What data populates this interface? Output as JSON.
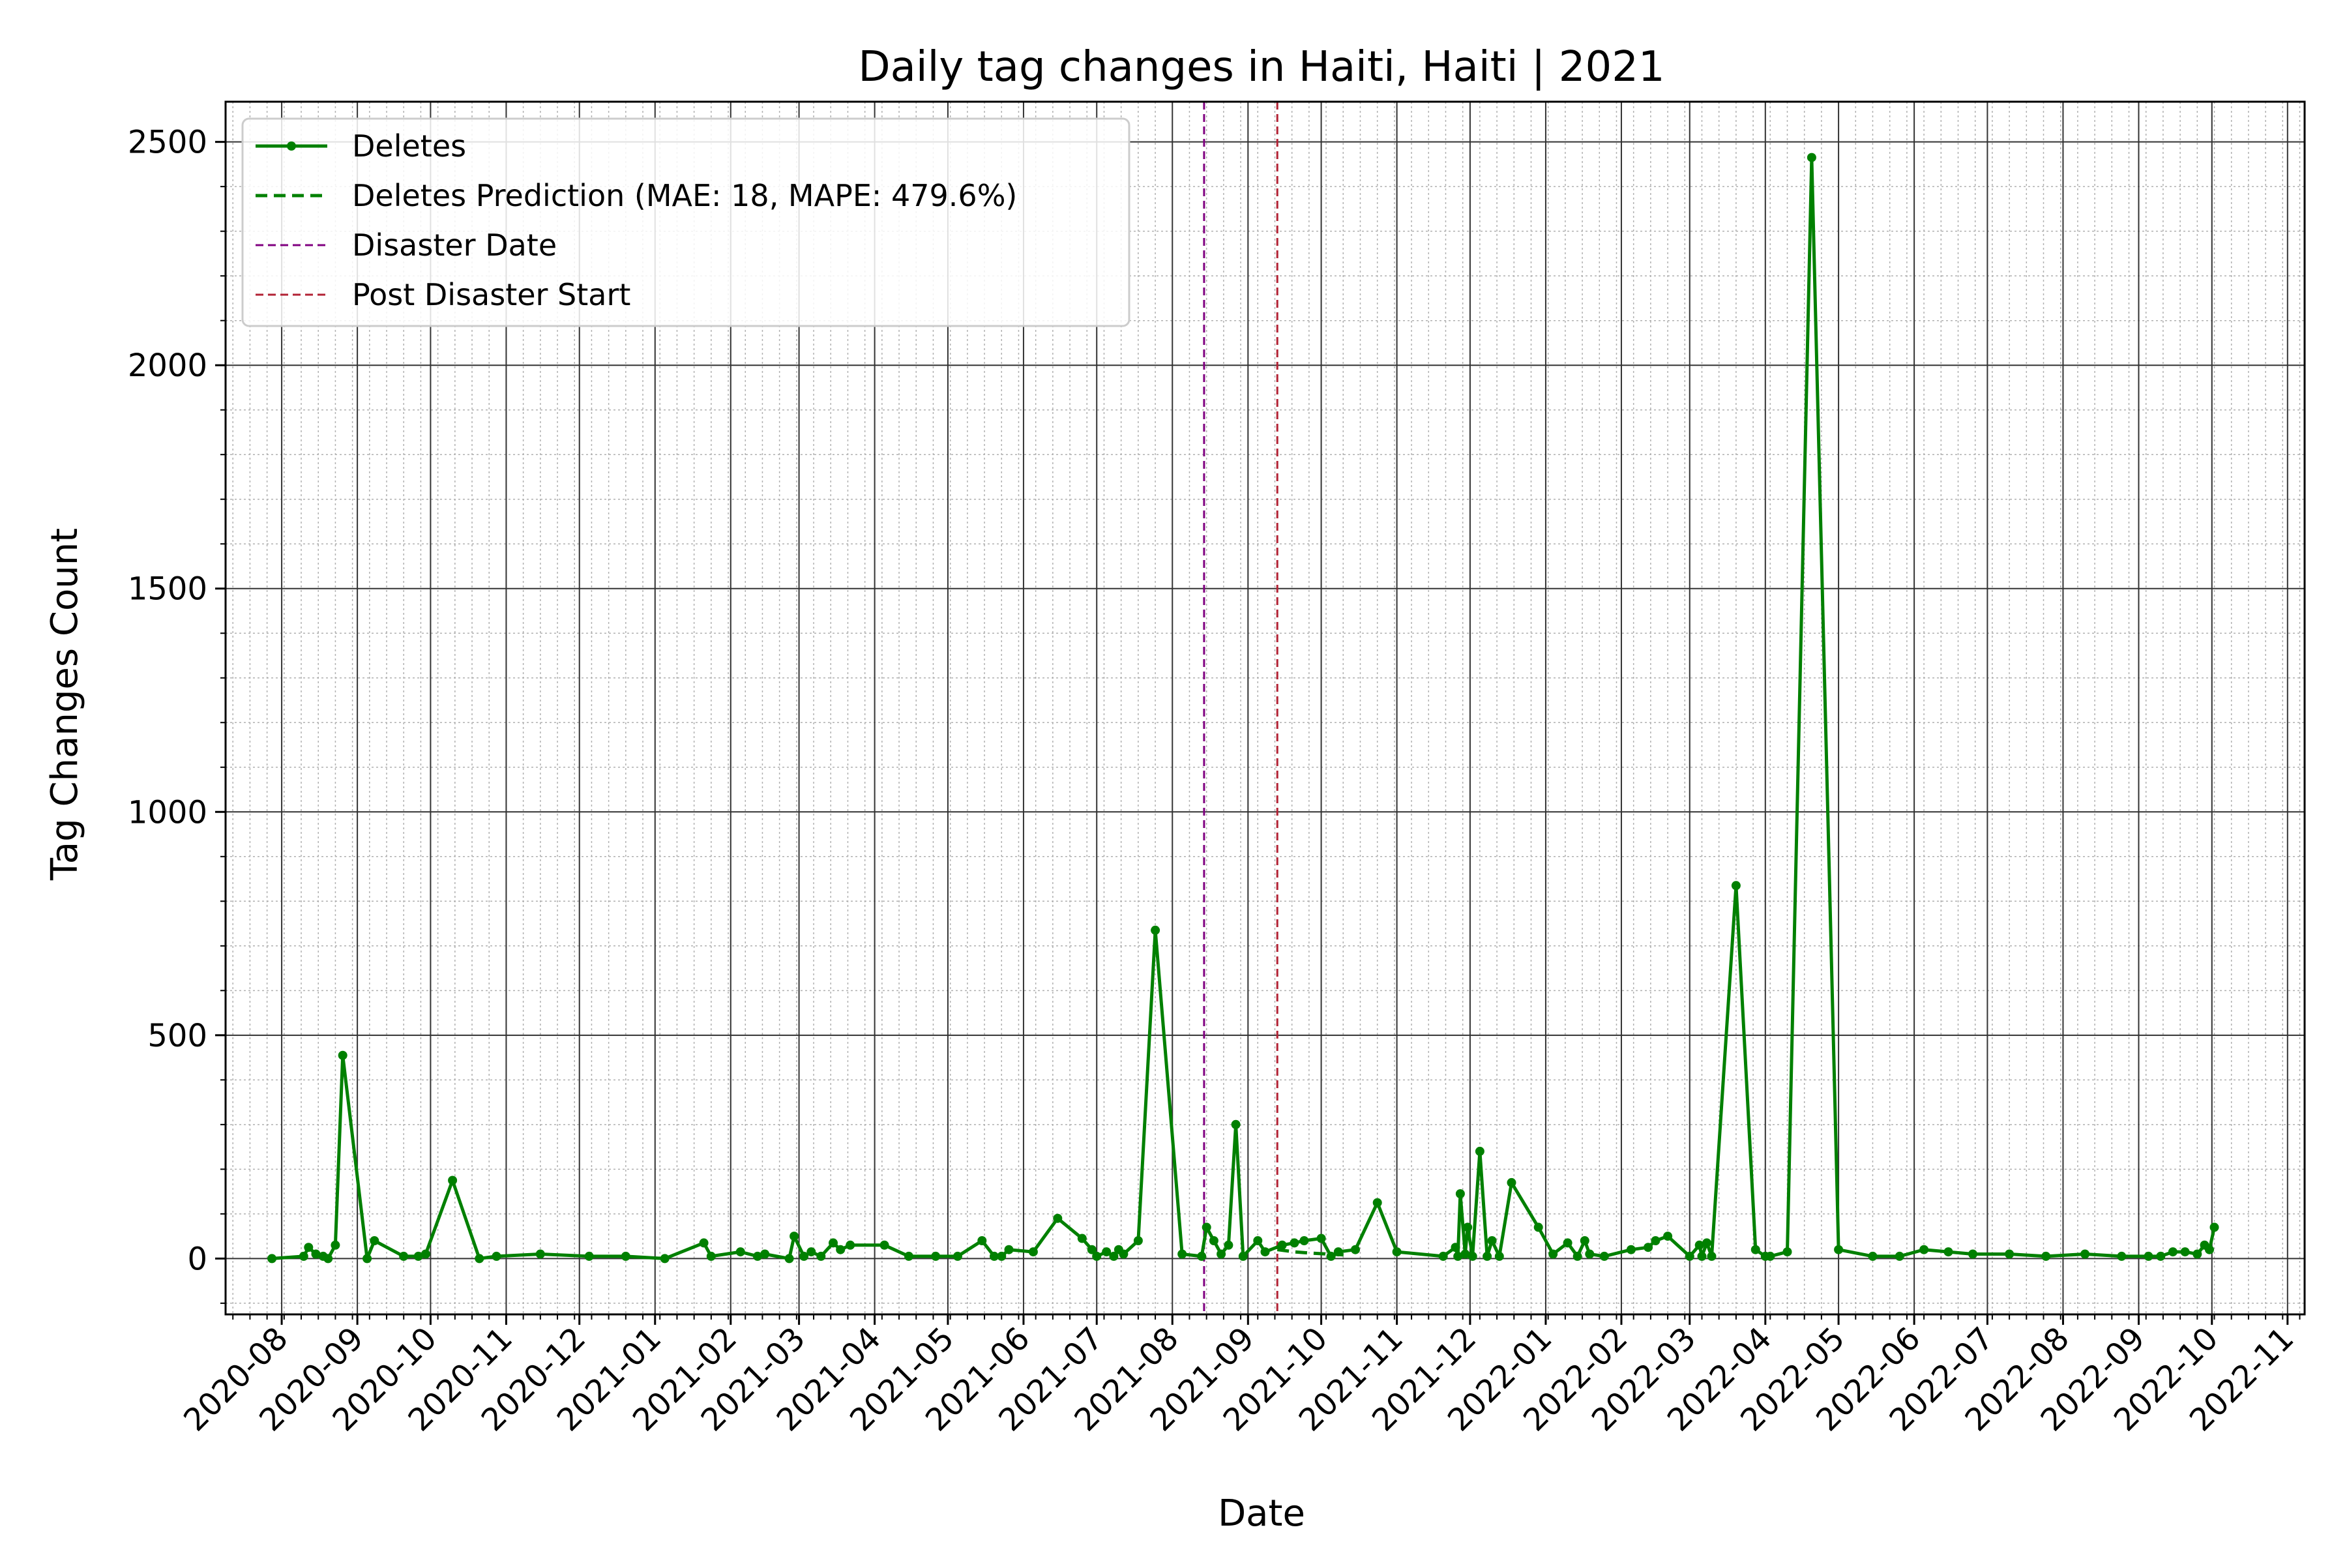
{
  "chart_data": {
    "type": "line",
    "title": "Daily tag changes in Haiti, Haiti | 2021",
    "xlabel": "Date",
    "ylabel": "Tag Changes Count",
    "xlim": [
      "2020-07-09",
      "2022-11-08"
    ],
    "ylim": [
      -125,
      2590
    ],
    "x_ticks": [
      "2020-08",
      "2020-09",
      "2020-10",
      "2020-11",
      "2020-12",
      "2021-01",
      "2021-02",
      "2021-03",
      "2021-04",
      "2021-05",
      "2021-06",
      "2021-07",
      "2021-08",
      "2021-09",
      "2021-10",
      "2021-11",
      "2021-12",
      "2022-01",
      "2022-02",
      "2022-03",
      "2022-04",
      "2022-05",
      "2022-06",
      "2022-07",
      "2022-08",
      "2022-09",
      "2022-10",
      "2022-11"
    ],
    "y_ticks": [
      0,
      500,
      1000,
      1500,
      2000,
      2500
    ],
    "grid": true,
    "legend_position": "top-left",
    "legend": [
      "Deletes",
      "Deletes Prediction (MAE: 18, MAPE: 479.6%)",
      "Disaster Date",
      "Post Disaster Start"
    ],
    "colors": {
      "deletes": "#008000",
      "prediction": "#008000",
      "disaster": "#800080",
      "post_disaster": "#b22234"
    },
    "vlines": [
      {
        "name": "Disaster Date",
        "x": "2021-08-14"
      },
      {
        "name": "Post Disaster Start",
        "x": "2021-09-13"
      }
    ],
    "series": [
      {
        "name": "Deletes",
        "style": "solid-markers",
        "x": [
          "2020-07-28",
          "2020-08-10",
          "2020-08-12",
          "2020-08-15",
          "2020-08-18",
          "2020-08-20",
          "2020-08-23",
          "2020-08-26",
          "2020-09-05",
          "2020-09-08",
          "2020-09-20",
          "2020-09-26",
          "2020-09-29",
          "2020-10-10",
          "2020-10-21",
          "2020-10-28",
          "2020-11-15",
          "2020-12-05",
          "2020-12-20",
          "2021-01-05",
          "2021-01-21",
          "2021-01-24",
          "2021-02-05",
          "2021-02-12",
          "2021-02-15",
          "2021-02-25",
          "2021-02-27",
          "2021-03-03",
          "2021-03-06",
          "2021-03-10",
          "2021-03-15",
          "2021-03-18",
          "2021-03-22",
          "2021-04-05",
          "2021-04-15",
          "2021-04-26",
          "2021-05-05",
          "2021-05-15",
          "2021-05-20",
          "2021-05-23",
          "2021-05-26",
          "2021-06-05",
          "2021-06-15",
          "2021-06-25",
          "2021-06-29",
          "2021-07-01",
          "2021-07-05",
          "2021-07-08",
          "2021-07-10",
          "2021-07-12",
          "2021-07-18",
          "2021-07-25",
          "2021-08-05",
          "2021-08-13",
          "2021-08-15",
          "2021-08-18",
          "2021-08-21",
          "2021-08-24",
          "2021-08-27",
          "2021-08-30",
          "2021-09-05",
          "2021-09-08",
          "2021-09-15",
          "2021-09-20",
          "2021-09-24",
          "2021-10-01",
          "2021-10-05",
          "2021-10-08",
          "2021-10-15",
          "2021-10-24",
          "2021-11-01",
          "2021-11-20",
          "2021-11-25",
          "2021-11-26",
          "2021-11-27",
          "2021-11-29",
          "2021-11-30",
          "2021-12-02",
          "2021-12-05",
          "2021-12-08",
          "2021-12-10",
          "2021-12-13",
          "2021-12-18",
          "2021-12-29",
          "2022-01-04",
          "2022-01-10",
          "2022-01-14",
          "2022-01-17",
          "2022-01-19",
          "2022-01-25",
          "2022-02-05",
          "2022-02-12",
          "2022-02-15",
          "2022-02-20",
          "2022-03-01",
          "2022-03-05",
          "2022-03-06",
          "2022-03-08",
          "2022-03-10",
          "2022-03-20",
          "2022-03-28",
          "2022-04-01",
          "2022-04-03",
          "2022-04-10",
          "2022-04-20",
          "2022-05-01",
          "2022-05-15",
          "2022-05-26",
          "2022-06-05",
          "2022-06-15",
          "2022-06-25",
          "2022-07-10",
          "2022-07-25",
          "2022-08-10",
          "2022-08-25",
          "2022-09-05",
          "2022-09-10",
          "2022-09-15",
          "2022-09-20",
          "2022-09-25",
          "2022-09-28",
          "2022-09-30",
          "2022-10-02"
        ],
        "y": [
          0,
          5,
          25,
          10,
          5,
          0,
          30,
          455,
          0,
          40,
          5,
          5,
          10,
          175,
          0,
          5,
          10,
          5,
          5,
          0,
          35,
          5,
          15,
          5,
          10,
          0,
          50,
          5,
          15,
          5,
          35,
          20,
          30,
          30,
          5,
          5,
          5,
          40,
          5,
          5,
          20,
          15,
          90,
          45,
          20,
          5,
          15,
          5,
          20,
          10,
          40,
          735,
          10,
          5,
          70,
          40,
          10,
          30,
          300,
          5,
          40,
          15,
          30,
          35,
          40,
          45,
          5,
          15,
          20,
          125,
          15,
          5,
          25,
          5,
          145,
          10,
          70,
          5,
          240,
          5,
          40,
          5,
          170,
          70,
          10,
          35,
          5,
          40,
          10,
          5,
          20,
          25,
          40,
          50,
          5,
          30,
          5,
          35,
          5,
          835,
          20,
          5,
          5,
          15,
          2465,
          20,
          5,
          5,
          20,
          15,
          10,
          10,
          5,
          10,
          5,
          5,
          5,
          15,
          15,
          10,
          30,
          20,
          70
        ]
      },
      {
        "name": "Deletes Prediction (MAE: 18, MAPE: 479.6%)",
        "style": "dashed",
        "x": [
          "2021-09-13",
          "2021-09-20",
          "2021-09-27",
          "2021-10-04",
          "2021-10-11"
        ],
        "y": [
          20,
          15,
          12,
          10,
          8
        ]
      }
    ]
  }
}
